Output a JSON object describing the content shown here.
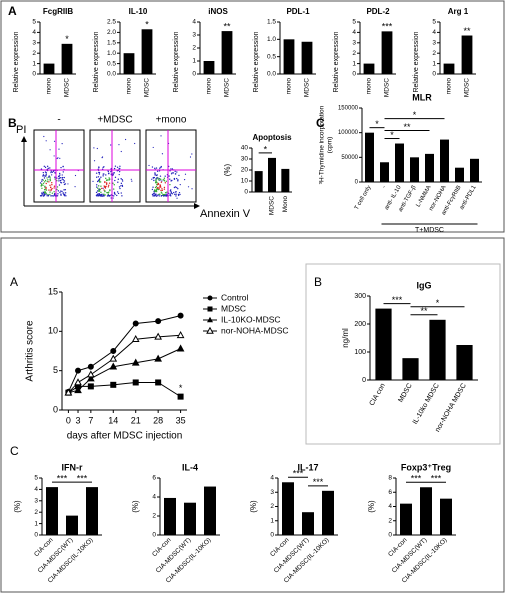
{
  "panel_labels": [
    "A",
    "B",
    "C",
    "A",
    "B",
    "C"
  ],
  "flow_cytometry": {
    "conditions": [
      "-",
      "+MDSC",
      "+mono"
    ],
    "y_label": "PI",
    "x_label": "Annexin V"
  },
  "chart_data": [
    {
      "type": "bar",
      "title": "FcgRIIB",
      "y_label": "Relative expression",
      "categories": [
        "mono",
        "MDSC"
      ],
      "values": [
        1,
        2.9
      ],
      "color": "#000000",
      "ylim": [
        0,
        5
      ],
      "yticks": [
        0,
        1,
        2,
        3,
        4,
        5
      ],
      "annotations": [
        "*"
      ]
    },
    {
      "type": "bar",
      "title": "IL-10",
      "y_label": "Relative expression",
      "categories": [
        "mono",
        "MDSC"
      ],
      "values": [
        1,
        2.15
      ],
      "color": "#000000",
      "ylim": [
        0,
        2.5
      ],
      "yticks": [
        {
          "value": 0,
          "label": "0.0"
        },
        0.5,
        {
          "value": 1,
          "label": "1.0"
        },
        1.5,
        {
          "value": 2,
          "label": "2.0"
        },
        2.5
      ],
      "annotations": [
        "*"
      ]
    },
    {
      "type": "bar",
      "title": "iNOS",
      "y_label": "Relative expression",
      "categories": [
        "mono",
        "MDSC"
      ],
      "values": [
        1,
        3.3
      ],
      "color": "#000000",
      "ylim": [
        0,
        4
      ],
      "yticks": [
        0,
        1,
        2,
        3,
        4
      ],
      "annotations": [
        "**"
      ]
    },
    {
      "type": "bar",
      "title": "PDL-1",
      "y_label": "Relative expression",
      "categories": [
        "mono",
        "MDSC"
      ],
      "values": [
        1,
        0.93
      ],
      "color": "#000000",
      "ylim": [
        0,
        1.5
      ],
      "yticks": [
        {
          "value": 0,
          "label": "0.0"
        },
        0.5,
        {
          "value": 1,
          "label": "1.0"
        },
        1.5
      ]
    },
    {
      "type": "bar",
      "title": "PDL-2",
      "y_label": "Relative expression",
      "categories": [
        "mono",
        "MDSC"
      ],
      "values": [
        1,
        4.1
      ],
      "color": "#000000",
      "ylim": [
        0,
        5
      ],
      "yticks": [
        0,
        1,
        2,
        3,
        4,
        5
      ],
      "annotations": [
        "***"
      ]
    },
    {
      "type": "bar",
      "title": "Arg 1",
      "y_label": "Relative expression",
      "categories": [
        "mono",
        "MDSC"
      ],
      "values": [
        1,
        3.7
      ],
      "color": "#000000",
      "ylim": [
        0,
        5
      ],
      "yticks": [
        0,
        1,
        2,
        3,
        4,
        5
      ],
      "annotations": [
        "**"
      ]
    },
    {
      "type": "bar",
      "title": "Apoptosis",
      "y_label": "(%)",
      "categories": [
        null,
        "MDSC",
        "Mono"
      ],
      "values": [
        19,
        31,
        21
      ],
      "color": "#000000",
      "ylim": [
        0,
        40
      ],
      "yticks": [
        0,
        10,
        20,
        30,
        40
      ],
      "annotations": [
        "*"
      ]
    },
    {
      "type": "bar",
      "title": "MLR",
      "y_label": [
        "³H-Thymidine incorporation",
        "(cpm)"
      ],
      "categories": [
        "T cell only",
        "-",
        "anti- IL-10",
        "anti-TGF-β",
        "L-NMMA",
        "nor-NOHA",
        "anti-FcγRIIB",
        "anti-PDL1"
      ],
      "values": [
        100000,
        40000,
        78000,
        50000,
        57000,
        86000,
        29000,
        47000
      ],
      "color": "#000000",
      "ylim": [
        0,
        150000
      ],
      "yticks": [
        0,
        50000,
        100000,
        150000
      ],
      "annotations": [
        "*",
        "*",
        "**",
        "*"
      ],
      "group_label": "T+MDSC"
    },
    {
      "type": "line",
      "y_label": "Arthritis score",
      "x_label": "days after MDSC injection",
      "x": [
        0,
        3,
        7,
        14,
        21,
        28,
        35
      ],
      "xlim": [
        -2,
        37
      ],
      "xticks": [
        0,
        3,
        7,
        14,
        21,
        28,
        35
      ],
      "ylim": [
        0,
        15
      ],
      "yticks": [
        0,
        5,
        10,
        15
      ],
      "legend": "right",
      "annotations": [
        "*"
      ],
      "series": [
        {
          "name": "Control",
          "color": "#000000",
          "marker": "circle",
          "values": [
            2.3,
            5,
            5.5,
            7.5,
            11,
            11.3,
            12
          ]
        },
        {
          "name": "MDSC",
          "color": "#000000",
          "marker": "square",
          "values": [
            2.2,
            3,
            3,
            3.2,
            3.5,
            3.5,
            1.7
          ]
        },
        {
          "name": "IL-10KO-MDSC",
          "color": "#000000",
          "marker": "triangle",
          "values": [
            2.2,
            2.5,
            4,
            5.5,
            6,
            6.5,
            7.8
          ]
        },
        {
          "name": "nor-NOHA-MDSC",
          "color": "#000000",
          "marker": "triangle-open",
          "values": [
            2.2,
            3.5,
            4.5,
            6.5,
            9,
            9.3,
            9.5
          ]
        }
      ]
    },
    {
      "type": "bar",
      "title": "IgG",
      "y_label": "ng/ml",
      "categories": [
        "CIA con",
        "MDSC",
        "IL-10ko MDSC",
        "nor-NOHA MDSC"
      ],
      "values": [
        255,
        78,
        215,
        125
      ],
      "color": "#000000",
      "ylim": [
        0,
        300
      ],
      "yticks": [
        0,
        100,
        200,
        300
      ],
      "annotations": [
        "***",
        "*",
        "**"
      ]
    },
    {
      "type": "bar",
      "title": "IFN-r",
      "y_label": "(%)",
      "categories": [
        "CIA-con",
        "CIA-MDSC(WT)",
        "CIA-MDSC(IL-10KO)"
      ],
      "values": [
        4.2,
        1.7,
        4.2
      ],
      "color": "#000000",
      "ylim": [
        0,
        5
      ],
      "yticks": [
        0,
        1,
        2,
        3,
        4,
        5
      ],
      "annotations": [
        "***",
        "***"
      ]
    },
    {
      "type": "bar",
      "title": "IL-4",
      "y_label": "(%)",
      "categories": [
        "CIA-con",
        "CIA-MDSC(WT)",
        "CIA-MDSC(IL-10KO)"
      ],
      "values": [
        3.9,
        3.4,
        5.1
      ],
      "color": "#000000",
      "ylim": [
        0,
        6
      ],
      "yticks": [
        0,
        2,
        4,
        6
      ]
    },
    {
      "type": "bar",
      "title": "IL-17",
      "y_label": "(%)",
      "categories": [
        "CIA-con",
        "CIA-MDSC(WT)",
        "CIA-MDSC(IL-10KO)"
      ],
      "values": [
        3.7,
        1.6,
        3.1
      ],
      "color": "#000000",
      "ylim": [
        0,
        4
      ],
      "yticks": [
        0,
        1,
        2,
        3,
        4
      ],
      "annotations": [
        "***",
        "***"
      ]
    },
    {
      "type": "bar",
      "title": "Foxp3⁺Treg",
      "y_label": "(%)",
      "categories": [
        "CIA-con",
        "CIA-MDSC(WT)",
        "CIA-MDSC(IL-10KO)"
      ],
      "values": [
        4.4,
        6.7,
        5.1
      ],
      "color": "#000000",
      "ylim": [
        0,
        8
      ],
      "yticks": [
        0,
        2,
        4,
        6,
        8
      ],
      "annotations": [
        "***",
        "***"
      ]
    }
  ]
}
